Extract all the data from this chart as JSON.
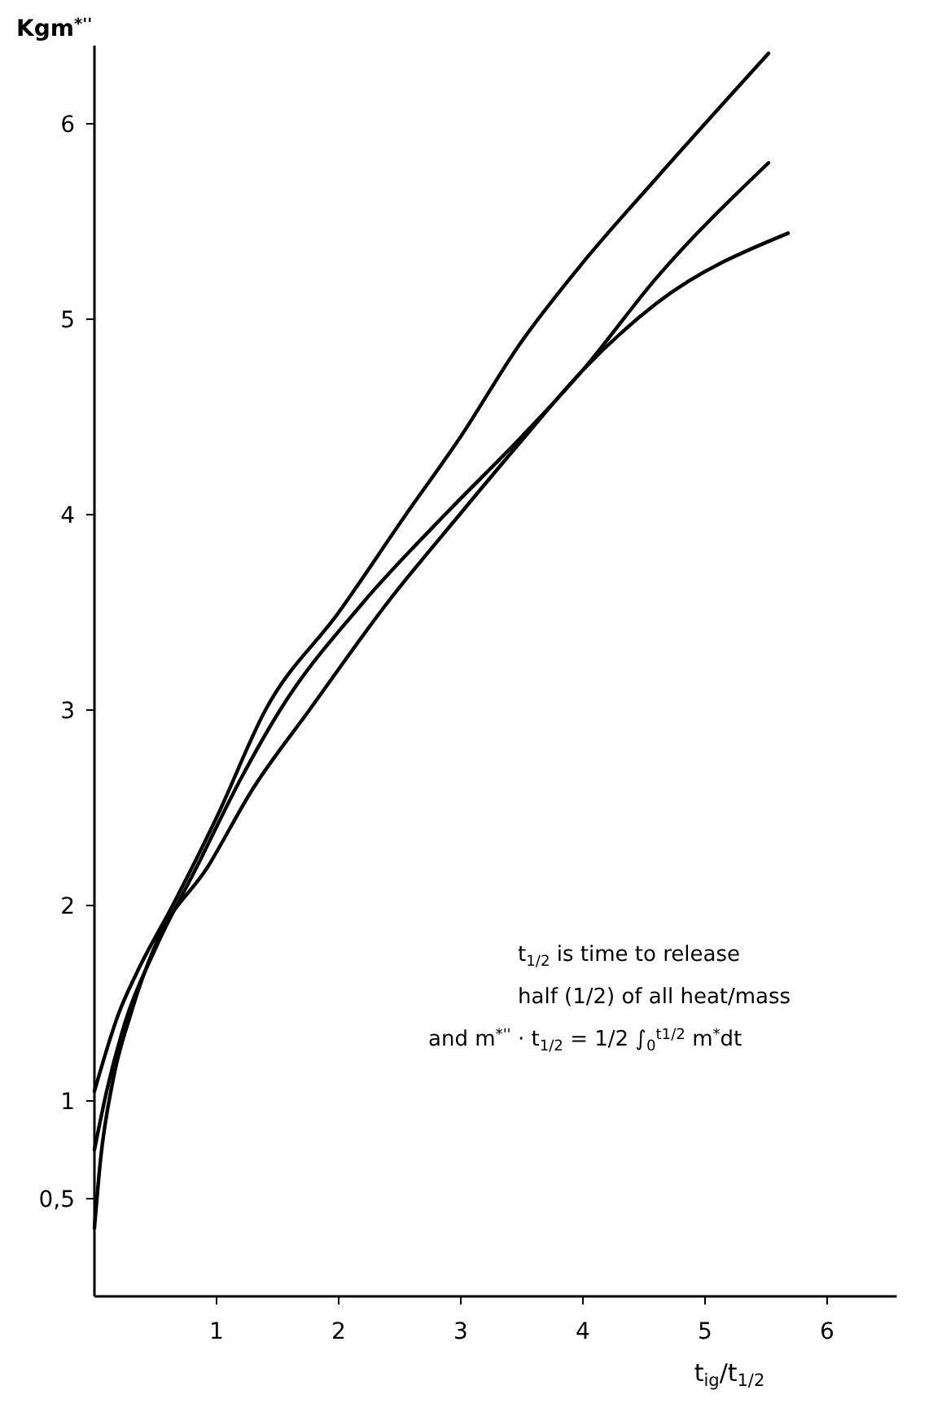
{
  "chart_data": {
    "type": "line",
    "xlabel": "t$_{ig}$/t$_{1/2}$",
    "ylabel": "Kgm$^{*''}$",
    "xlim": [
      0,
      6.57
    ],
    "xticks": [
      1,
      2,
      3,
      4,
      5,
      6
    ],
    "ylim": [
      0,
      6.4
    ],
    "yticks": [
      {
        "value": 0.5,
        "label": "0,5"
      },
      1,
      2,
      3,
      4,
      5,
      6
    ],
    "marker": "none",
    "line_style": "solid",
    "annotations": [
      "t$_{1/2}$ is time to release",
      "half (1/2) of all heat/mass",
      "and m$^{*''}$ · t$_{1/2}$ = 1/2 ∫$_{0}$$^{t1/2}$ m$^{*}$dt"
    ],
    "series": [
      {
        "color": "#000000",
        "x": [
          0,
          0.2,
          0.35,
          0.64,
          1,
          1.4,
          2,
          2.55,
          3,
          3.48,
          4,
          4.6,
          5.52
        ],
        "values": [
          1.05,
          1.45,
          1.66,
          2,
          2.45,
          3,
          3.5,
          4,
          4.4,
          4.87,
          5.29,
          5.72,
          6.36
        ]
      },
      {
        "color": "#000000",
        "x": [
          0,
          0.1,
          0.25,
          0.5,
          0.84,
          1.2,
          1.52,
          2.2,
          2.87,
          3.5,
          4,
          4.6,
          5.52
        ],
        "values": [
          0.75,
          1.05,
          1.4,
          1.78,
          2.2,
          2.65,
          3,
          3.55,
          4,
          4.4,
          4.74,
          5.21,
          5.8
        ]
      },
      {
        "color": "#000000",
        "x": [
          0,
          0.05,
          0.15,
          0.3,
          0.5,
          0.93,
          1.3,
          1.76,
          2.4,
          2.99,
          3.5,
          4,
          4.6,
          5.68
        ],
        "values": [
          0.35,
          0.7,
          1.1,
          1.45,
          1.8,
          2.2,
          2.6,
          3,
          3.55,
          4,
          4.38,
          4.74,
          5.08,
          5.44
        ]
      }
    ]
  }
}
